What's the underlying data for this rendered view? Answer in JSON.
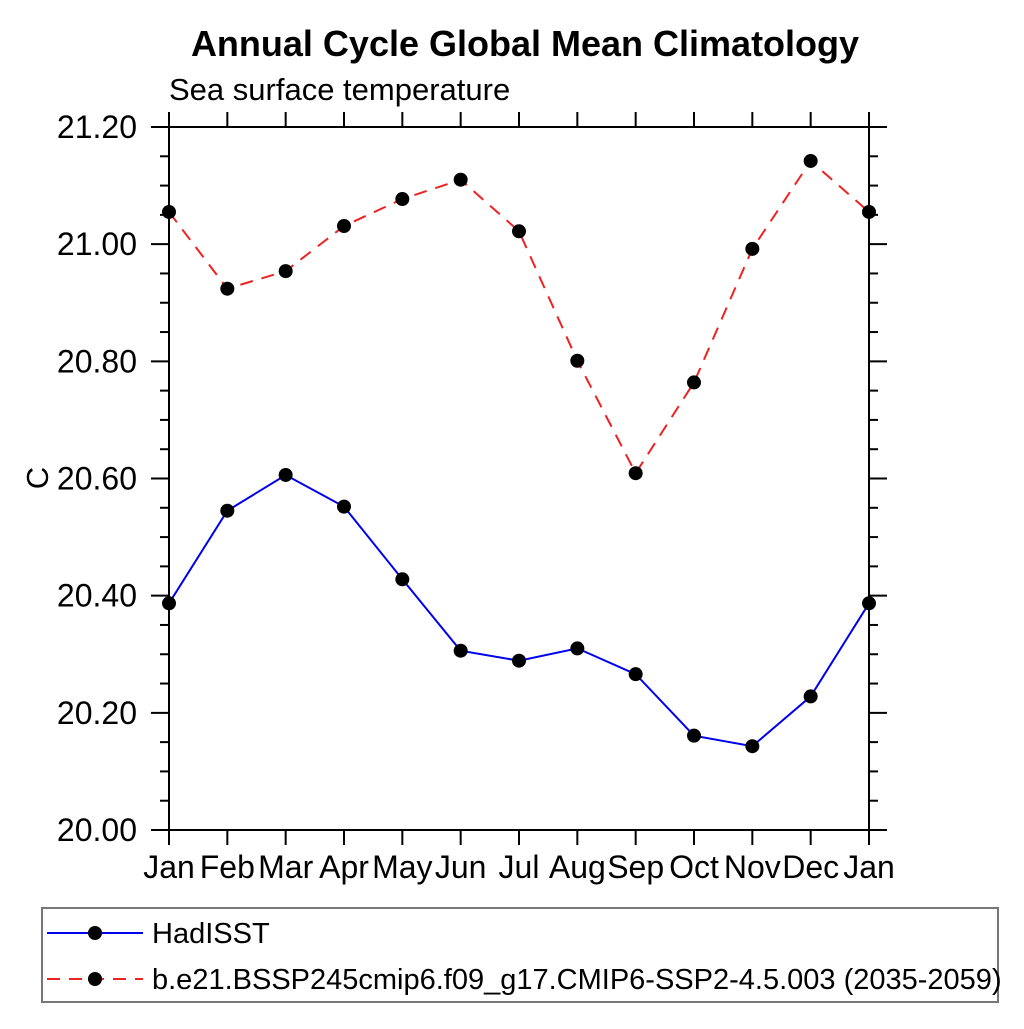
{
  "header": {
    "title": "Annual Cycle Global Mean Climatology",
    "subtitle": "Sea surface temperature"
  },
  "colors": {
    "background": "#ffffff",
    "axis": "#000000",
    "legend_border": "#777777",
    "hadisst_line": "#0000ee",
    "model_line": "#ee2222",
    "marker": "#000000"
  },
  "chart_data": {
    "type": "line",
    "title": "Annual Cycle Global Mean Climatology",
    "subtitle": "Sea surface temperature",
    "xlabel": "",
    "ylabel": "C",
    "x_categories": [
      "Jan",
      "Feb",
      "Mar",
      "Apr",
      "May",
      "Jun",
      "Jul",
      "Aug",
      "Sep",
      "Oct",
      "Nov",
      "Dec",
      "Jan"
    ],
    "ylim": [
      20.0,
      21.2
    ],
    "ytick_labels": [
      "20.00",
      "20.20",
      "20.40",
      "20.60",
      "20.80",
      "21.00",
      "21.20"
    ],
    "ytick_major_step": 0.2,
    "ytick_minor_step": 0.05,
    "grid": false,
    "legend_position": "bottom-box",
    "series": [
      {
        "name": "HadISST",
        "color": "#0000ee",
        "line_style": "solid",
        "marker": "circle",
        "marker_color": "#000000",
        "values": [
          20.387,
          20.545,
          20.606,
          20.552,
          20.428,
          20.306,
          20.289,
          20.31,
          20.266,
          20.161,
          20.143,
          20.228,
          20.387
        ]
      },
      {
        "name": "b.e21.BSSP245cmip6.f09_g17.CMIP6-SSP2-4.5.003 (2035-2059)",
        "color": "#ee2222",
        "line_style": "dashed",
        "marker": "circle",
        "marker_color": "#000000",
        "values": [
          21.055,
          20.924,
          20.954,
          21.031,
          21.077,
          21.11,
          21.022,
          20.801,
          20.609,
          20.764,
          20.992,
          21.142,
          21.055
        ]
      }
    ]
  }
}
